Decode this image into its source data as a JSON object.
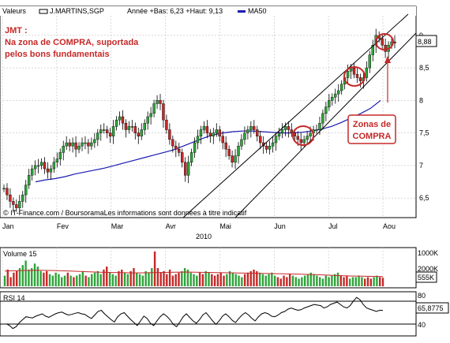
{
  "header": {
    "legend_label": "Valeurs",
    "legend_series": "J.MARTINS,SGP",
    "range_text": "Année +Bas: 6,23 +Haut: 9,13",
    "ma_label": "MA50"
  },
  "annotation": {
    "title": "JMT :",
    "line1": "Na zona de COMPRA, suportada",
    "line2": "pelos bons fundamentais",
    "zone_line1": "Zonas de",
    "zone_line2": "COMPRA"
  },
  "footer": {
    "source": "© IT-Finance.com / BoursoramaLes informations sont données à titre indicatif",
    "year": "2010"
  },
  "colors": {
    "up": "#2fa33a",
    "down": "#c62828",
    "ma": "#1a1ab0",
    "annotation": "#c62828",
    "grid": "#c0c0c0",
    "rsi": "#000000",
    "volume_ma": "#c62828"
  },
  "chart_data": [
    {
      "type": "candlestick",
      "title": "",
      "series": [
        {
          "name": "J.MARTINS,SGP",
          "values_note": "daily OHLC"
        },
        {
          "name": "MA50"
        }
      ],
      "x_ticks": [
        "Jan",
        "Fev",
        "Mar",
        "Avr",
        "Mai",
        "Jun",
        "Jul",
        "Aou"
      ],
      "y_ticks": [
        "6,5",
        "7",
        "7,5",
        "8",
        "8,5",
        "9"
      ],
      "ylim": [
        6.2,
        9.3
      ],
      "last_value": "8,88",
      "closes": [
        6.65,
        6.55,
        6.45,
        6.4,
        6.35,
        6.45,
        6.55,
        6.7,
        6.85,
        6.95,
        7.0,
        7.0,
        7.05,
        6.95,
        6.9,
        6.95,
        7.05,
        7.1,
        7.2,
        7.3,
        7.35,
        7.3,
        7.35,
        7.25,
        7.3,
        7.35,
        7.35,
        7.3,
        7.35,
        7.4,
        7.5,
        7.55,
        7.55,
        7.5,
        7.45,
        7.6,
        7.7,
        7.75,
        7.65,
        7.55,
        7.6,
        7.6,
        7.5,
        7.45,
        7.55,
        7.65,
        7.75,
        7.8,
        7.95,
        8.0,
        7.95,
        7.7,
        7.55,
        7.4,
        7.3,
        7.25,
        7.2,
        7.05,
        6.85,
        7.05,
        7.2,
        7.35,
        7.45,
        7.55,
        7.6,
        7.5,
        7.45,
        7.5,
        7.55,
        7.45,
        7.35,
        7.25,
        7.15,
        7.05,
        7.15,
        7.3,
        7.4,
        7.5,
        7.55,
        7.6,
        7.55,
        7.45,
        7.35,
        7.3,
        7.25,
        7.3,
        7.35,
        7.45,
        7.5,
        7.55,
        7.6,
        7.55,
        7.5,
        7.45,
        7.4,
        7.35,
        7.4,
        7.45,
        7.5,
        7.55,
        7.55,
        7.65,
        7.8,
        7.9,
        8.0,
        8.05,
        8.1,
        8.15,
        8.25,
        8.35,
        8.45,
        8.5,
        8.4,
        8.35,
        8.3,
        8.35,
        8.5,
        8.7,
        8.85,
        9.0,
        8.95,
        8.85,
        8.75,
        8.85,
        8.9,
        8.88
      ],
      "ma50": [
        6.75,
        6.78,
        6.8,
        6.83,
        6.87,
        6.9,
        6.93,
        6.96,
        7.0,
        7.04,
        7.08,
        7.12,
        7.16,
        7.2,
        7.24,
        7.3,
        7.36,
        7.42,
        7.47,
        7.5,
        7.52,
        7.53,
        7.53,
        7.52,
        7.51,
        7.5,
        7.5,
        7.51,
        7.53,
        7.56,
        7.6,
        7.66,
        7.73,
        7.8,
        7.88,
        8.0
      ],
      "x_label": "2010"
    },
    {
      "type": "bar",
      "title": "Volume 15",
      "y_ticks": [
        "1000K",
        "2000K"
      ],
      "last_value": "555K",
      "values": [
        0.35,
        0.55,
        0.3,
        0.45,
        0.5,
        0.6,
        0.7,
        0.85,
        0.55,
        0.6,
        0.75,
        0.65,
        0.5,
        0.45,
        0.5,
        0.4,
        0.35,
        0.45,
        0.4,
        0.3,
        0.35,
        0.45,
        0.35,
        0.3,
        0.35,
        0.4,
        0.5,
        0.35,
        0.3,
        0.4,
        0.45,
        0.5,
        0.4,
        0.55,
        0.65,
        0.45,
        0.4,
        0.35,
        0.5,
        0.55,
        0.45,
        0.4,
        0.5,
        0.6,
        0.45,
        0.4,
        0.35,
        0.5,
        0.45,
        0.6,
        1.15,
        0.6,
        0.45,
        0.5,
        0.4,
        0.55,
        0.35,
        0.4,
        0.45,
        0.5,
        0.6,
        0.55,
        0.45,
        0.4,
        0.35,
        0.45,
        0.4,
        0.5,
        0.45,
        0.4,
        0.35,
        0.4,
        0.45,
        0.35,
        0.4,
        0.5,
        0.45,
        0.4,
        0.35,
        0.3,
        0.4,
        0.45,
        0.5,
        0.55,
        0.5,
        0.45,
        0.4,
        0.35,
        0.4,
        0.45,
        0.35,
        0.3,
        0.25,
        0.35,
        0.3,
        0.4,
        0.35,
        0.3,
        0.25,
        0.3,
        0.35,
        0.4,
        0.45,
        0.4,
        0.35,
        0.3,
        0.25,
        0.35,
        0.3,
        0.35,
        0.4,
        0.45,
        0.35,
        0.3,
        0.35,
        0.25,
        0.3,
        0.3,
        0.35,
        0.3,
        0.25,
        0.3,
        0.25,
        0.3,
        0.35,
        0.3,
        0.28
      ],
      "ma": [
        0.5,
        0.52,
        0.53,
        0.52,
        0.5,
        0.48,
        0.46,
        0.45,
        0.44,
        0.45,
        0.46,
        0.47,
        0.46,
        0.45,
        0.44,
        0.43,
        0.42,
        0.41,
        0.4,
        0.38,
        0.36,
        0.34,
        0.33,
        0.32
      ]
    },
    {
      "type": "line",
      "title": "RSI 14",
      "y_ticks": [
        "40",
        "80"
      ],
      "ylim": [
        25,
        95
      ],
      "last_value": "65,8775",
      "values": [
        43,
        40,
        35,
        38,
        45,
        50,
        55,
        54,
        53,
        56,
        58,
        60,
        56,
        54,
        57,
        60,
        62,
        63,
        60,
        58,
        59,
        61,
        62,
        60,
        59,
        55,
        52,
        58,
        64,
        66,
        60,
        55,
        50,
        46,
        55,
        60,
        62,
        56,
        50,
        45,
        40,
        48,
        56,
        52,
        44,
        40,
        48,
        55,
        60,
        56,
        50,
        42,
        38,
        46,
        55,
        60,
        54,
        48,
        44,
        50,
        58,
        62,
        55,
        48,
        42,
        48,
        56,
        60,
        55,
        49,
        45,
        52,
        58,
        62,
        58,
        52,
        48,
        55,
        60,
        62,
        60,
        56,
        55,
        58,
        62,
        64,
        68,
        70,
        68,
        66,
        67,
        70,
        72,
        74,
        76,
        75,
        74,
        70,
        72,
        76,
        78,
        80,
        76,
        72,
        70,
        74,
        82,
        88,
        84,
        76,
        70,
        68,
        66,
        64,
        66,
        65.88
      ]
    }
  ]
}
